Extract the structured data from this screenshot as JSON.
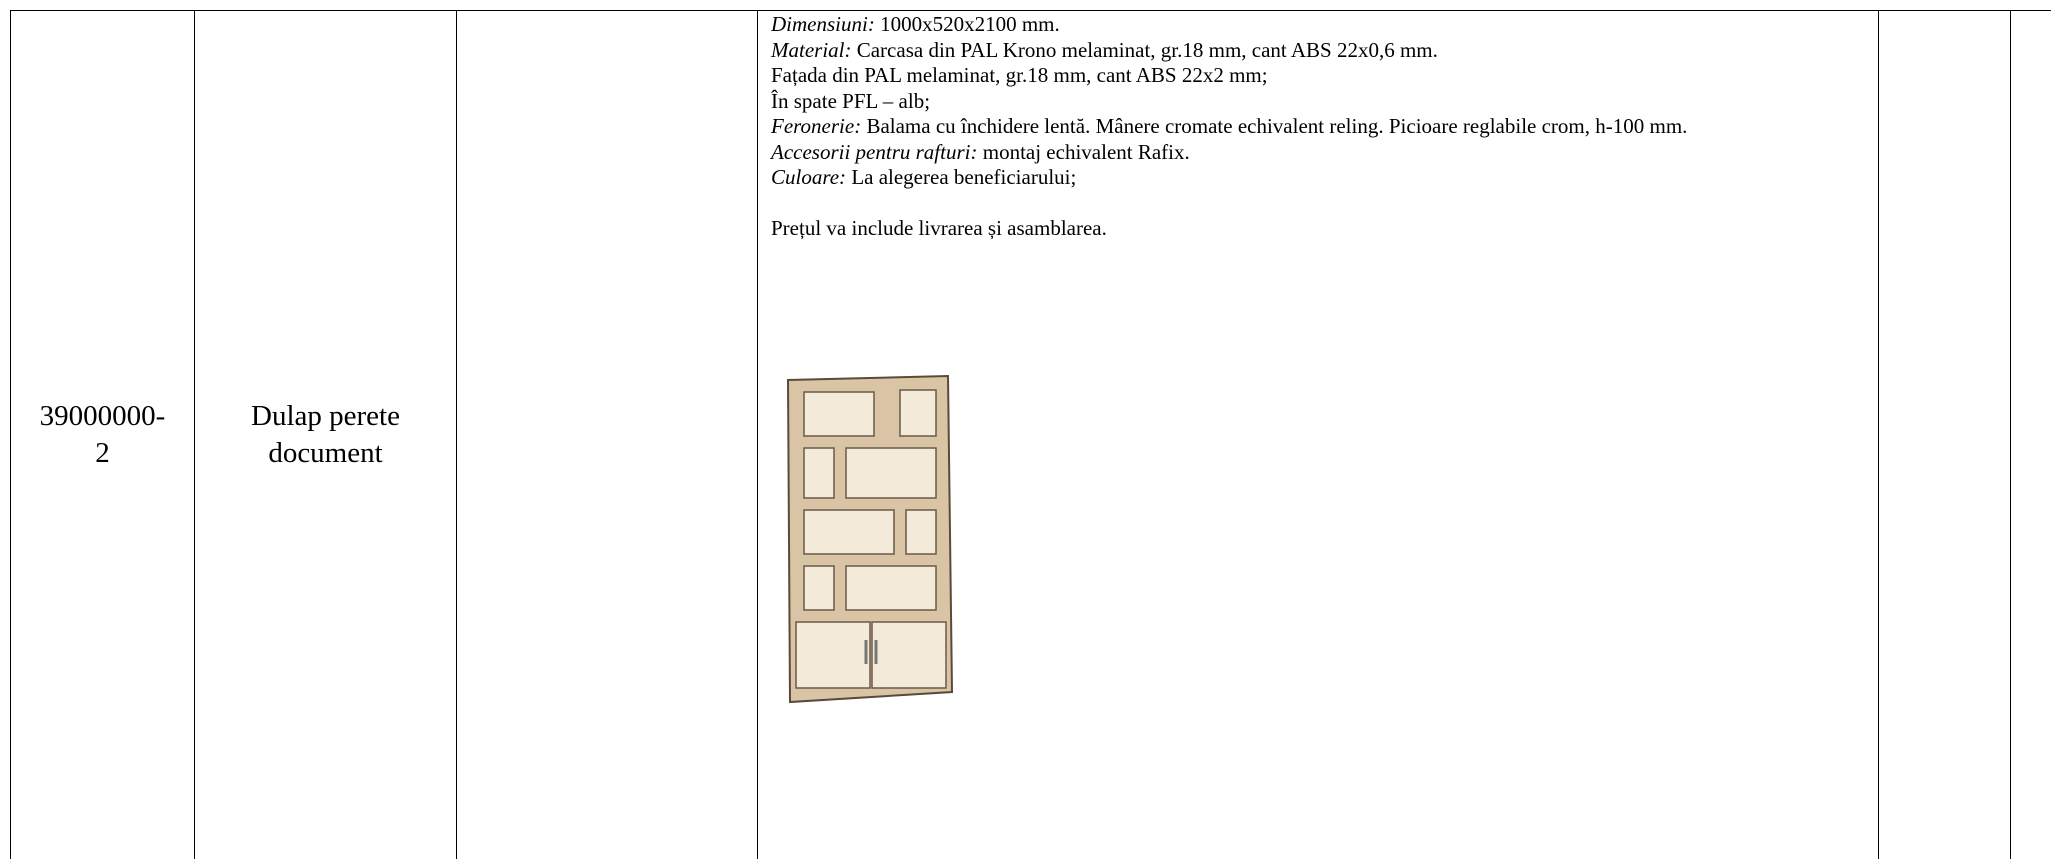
{
  "table": {
    "rows": [
      {
        "code": "39000000-2",
        "name": "Dulap perete document",
        "description": [
          {
            "label": "Dimensiuni:",
            "text": "1000x520x2100 mm."
          },
          {
            "label": "Material:",
            "text": "Carcasa din PAL Krono melaminat, gr.18 mm, cant ABS 22x0,6 mm."
          },
          {
            "text": "Fațada din PAL melaminat, gr.18 mm, cant ABS 22x2 mm;"
          },
          {
            "text": "În spate PFL – alb;"
          },
          {
            "label": "Feronerie:",
            "text": "Balama cu închidere lentă. Mânere cromate echivalent reling. Picioare reglabile crom, h-100 mm."
          },
          {
            "label": "Accesorii pentru rafturi:",
            "text": "montaj echivalent Rafix."
          },
          {
            "label": "Culoare:",
            "text": "La alegerea beneficiarului;"
          }
        ],
        "note": "Prețul va include livrarea și asamblarea."
      }
    ]
  }
}
